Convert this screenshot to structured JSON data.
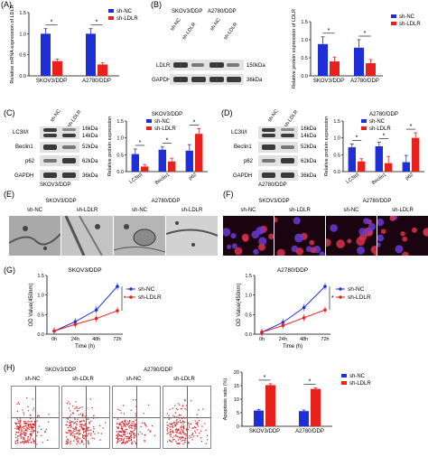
{
  "panels": {
    "A": {
      "letter": "(A)",
      "ylabel": "Relative mRNA expression of LDLR",
      "xcats": [
        "SKOV3/DDP",
        "A2780/DDP"
      ],
      "legend": [
        "sh-NC",
        "sh-LDLR"
      ],
      "sig": "*",
      "yticks": [
        "0.0",
        "0.5",
        "1.0",
        "1.5"
      ]
    },
    "B": {
      "letter": "(B)",
      "headers": [
        "SKOV3/DDP",
        "A2780/DDP"
      ],
      "lanes": [
        "sh-NC",
        "sh-LDLR",
        "sh-NC",
        "sh-LDLR"
      ],
      "rows": [
        "LDLR",
        "GAPDH"
      ],
      "kda": [
        "150kDa",
        "36kDa"
      ],
      "ylabel": "Relative protein expression of LDLR",
      "xcats": [
        "SKOV3/DDP",
        "A2780/DDP"
      ],
      "legend": [
        "sh-NC",
        "sh-LDLR"
      ],
      "yticks": [
        "0.0",
        "0.5",
        "1.0",
        "1.5"
      ],
      "sig": "*"
    },
    "C": {
      "letter": "(C)",
      "lanes": [
        "sh-NC",
        "sh-LDLR"
      ],
      "rows": [
        "LC3II/I",
        "Beclin1",
        "p62",
        "GAPDH"
      ],
      "kda": [
        "16kDa",
        "14kDa",
        "52kDa",
        "62kDa",
        "36kDa"
      ],
      "footer": "SKOV3/DDP",
      "title": "SKOV3/DDP",
      "ylabel": "Relative protein expression",
      "xcats": [
        "LC3II/I",
        "Beclin1",
        "p62"
      ],
      "legend": [
        "sh-NC",
        "sh-LDLR"
      ],
      "yticks": [
        "0.0",
        "0.5",
        "1.0",
        "1.5"
      ],
      "sig": "*"
    },
    "D": {
      "letter": "(D)",
      "lanes": [
        "sh-NC",
        "sh-LDLR"
      ],
      "rows": [
        "LC3II/I",
        "Beclin1",
        "p62",
        "GAPDH"
      ],
      "kda": [
        "16kDa",
        "14kDa",
        "52kDa",
        "62kDa",
        "36kDa"
      ],
      "footer": "A2780/DDP",
      "title": "A2780/DDP",
      "ylabel": "Relative protein expression",
      "xcats": [
        "LC3II/I",
        "Beclin1",
        "p62"
      ],
      "legend": [
        "sh-NC",
        "sh-LDLR"
      ],
      "yticks": [
        "0.0",
        "0.5",
        "1.0",
        "1.5"
      ],
      "sig": "*"
    },
    "E": {
      "letter": "(E)",
      "groups": [
        "SKOV3/DDP",
        "A2780/DDP"
      ],
      "labels": [
        "sh-NC",
        "sh-LDLR",
        "sh-NC",
        "sh-LDLR"
      ]
    },
    "F": {
      "letter": "(F)",
      "groups": [
        "SKOV3/DDP",
        "A2780/DDP"
      ],
      "labels": [
        "sh-NC",
        "sh-LDLR",
        "sh-NC",
        "sh-LDLR"
      ]
    },
    "G": {
      "letter": "(G)",
      "sig": "*"
    },
    "H": {
      "letter": "(H)",
      "groups": [
        "SKOV3/DDP",
        "A2780/DDP"
      ],
      "labels": [
        "sh-NC",
        "sh-LDLR",
        "sh-NC",
        "sh-LDLR"
      ],
      "ylabel": "Apoptosis ratio (%)",
      "xcats": [
        "SKOV3/DDP",
        "A2780/DDP"
      ],
      "legend": [
        "sh-NC",
        "sh-LDLR"
      ],
      "yticks": [
        "0",
        "5",
        "10",
        "15",
        "20"
      ],
      "sig": "*"
    }
  },
  "colors": {
    "nc": "#1f2fd8",
    "ldlr": "#e8211d"
  },
  "chart_data": [
    {
      "type": "bar",
      "title": "",
      "ylabel": "Relative mRNA expression of LDLR",
      "categories": [
        "SKOV3/DDP",
        "A2780/DDP"
      ],
      "ylim": [
        0,
        1.5
      ],
      "series": [
        {
          "name": "sh-NC",
          "values": [
            1.0,
            1.0
          ],
          "err": [
            0.12,
            0.12
          ]
        },
        {
          "name": "sh-LDLR",
          "values": [
            0.35,
            0.27
          ],
          "err": [
            0.05,
            0.04
          ]
        }
      ]
    },
    {
      "type": "bar",
      "title": "",
      "ylabel": "Relative protein expression of LDLR",
      "categories": [
        "SKOV3/DDP",
        "A2780/DDP"
      ],
      "ylim": [
        0,
        1.5
      ],
      "series": [
        {
          "name": "sh-NC",
          "values": [
            0.88,
            0.78
          ],
          "err": [
            0.2,
            0.22
          ]
        },
        {
          "name": "sh-LDLR",
          "values": [
            0.4,
            0.35
          ],
          "err": [
            0.12,
            0.1
          ]
        }
      ]
    },
    {
      "type": "bar",
      "title": "SKOV3/DDP",
      "ylabel": "Relative protein expression",
      "categories": [
        "LC3II/I",
        "Beclin1",
        "p62"
      ],
      "ylim": [
        0,
        1.5
      ],
      "series": [
        {
          "name": "sh-NC",
          "values": [
            0.52,
            0.65,
            0.62
          ],
          "err": [
            0.15,
            0.08,
            0.18
          ]
        },
        {
          "name": "sh-LDLR",
          "values": [
            0.15,
            0.3,
            1.12
          ],
          "err": [
            0.06,
            0.1,
            0.15
          ]
        }
      ]
    },
    {
      "type": "bar",
      "title": "A2780/DDP",
      "ylabel": "Relative protein expression",
      "categories": [
        "LC3II/I",
        "Beclin1",
        "p62"
      ],
      "ylim": [
        0,
        1.5
      ],
      "series": [
        {
          "name": "sh-NC",
          "values": [
            0.72,
            0.75,
            0.28
          ],
          "err": [
            0.1,
            0.12,
            0.2
          ]
        },
        {
          "name": "sh-LDLR",
          "values": [
            0.3,
            0.25,
            1.0
          ],
          "err": [
            0.08,
            0.2,
            0.15
          ]
        }
      ]
    },
    {
      "type": "line",
      "title": "SKOV3/DDP",
      "xlabel": "Time (h)",
      "ylabel": "OD Value(450nm)",
      "x": [
        "0h",
        "24h",
        "48h",
        "72h"
      ],
      "yticks": [
        "0.0",
        "0.5",
        "1.0",
        "1.5"
      ],
      "ylim": [
        0,
        1.5
      ],
      "series": [
        {
          "name": "sh-NC",
          "values": [
            0.08,
            0.32,
            0.62,
            1.22
          ]
        },
        {
          "name": "sh-LDLR",
          "values": [
            0.08,
            0.25,
            0.4,
            0.6
          ]
        }
      ]
    },
    {
      "type": "line",
      "title": "A2780/DDP",
      "xlabel": "Time (h)",
      "ylabel": "OD Value(450nm)",
      "x": [
        "0h",
        "24h",
        "48h",
        "72h"
      ],
      "yticks": [
        "0.0",
        "0.5",
        "1.0",
        "1.5"
      ],
      "ylim": [
        0,
        1.5
      ],
      "series": [
        {
          "name": "sh-NC",
          "values": [
            0.05,
            0.3,
            0.68,
            1.22
          ]
        },
        {
          "name": "sh-LDLR",
          "values": [
            0.05,
            0.22,
            0.42,
            0.62
          ]
        }
      ]
    },
    {
      "type": "bar",
      "title": "",
      "ylabel": "Apoptosis ratio (%)",
      "categories": [
        "SKOV3/DDP",
        "A2780/DDP"
      ],
      "ylim": [
        0,
        20
      ],
      "series": [
        {
          "name": "sh-NC",
          "values": [
            5.8,
            5.6
          ],
          "err": [
            0.4,
            0.4
          ]
        },
        {
          "name": "sh-LDLR",
          "values": [
            15.2,
            13.8
          ],
          "err": [
            0.5,
            0.4
          ]
        }
      ]
    }
  ]
}
